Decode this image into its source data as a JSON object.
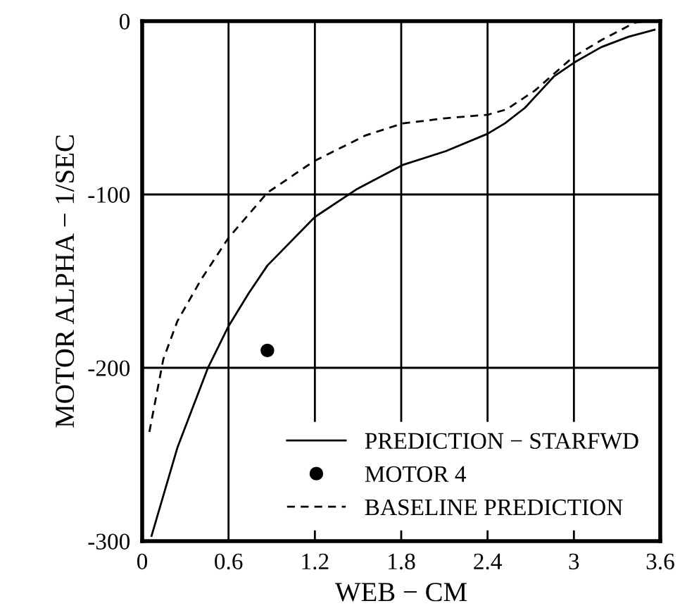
{
  "chart_data": {
    "type": "line",
    "xlabel": "WEB − CM",
    "ylabel": "MOTOR ALPHA − 1/SEC",
    "xlim": [
      0,
      3.6
    ],
    "ylim": [
      -300,
      0
    ],
    "xticks": [
      0,
      0.6,
      1.2,
      1.8,
      2.4,
      3,
      3.6
    ],
    "yticks": [
      -300,
      -200,
      -100,
      0
    ],
    "grid": true,
    "legend": "bottom right",
    "series": [
      {
        "name": "PREDICTION − STARFWD",
        "color": "#000000",
        "line_style": "solid",
        "x": [
          0.065,
          0.245,
          0.457,
          0.6,
          0.74,
          0.87,
          1.2,
          1.49,
          1.81,
          2.11,
          2.4,
          2.52,
          2.66,
          2.86,
          3.0,
          3.19,
          3.38,
          3.56
        ],
        "values": [
          -297,
          -246,
          -200,
          -176,
          -157,
          -141,
          -113,
          -97,
          -83,
          -75,
          -65,
          -59,
          -50,
          -32,
          -24,
          -15,
          -9,
          -5
        ]
      },
      {
        "name": "MOTOR 4",
        "type": "scatter",
        "color": "#000000",
        "marker": "circle",
        "x": [
          0.87
        ],
        "values": [
          -190
        ]
      },
      {
        "name": "BASELINE PREDICTION",
        "color": "#000000",
        "line_style": "dashed",
        "x": [
          0.05,
          0.147,
          0.245,
          0.41,
          0.6,
          0.87,
          1.19,
          1.55,
          1.81,
          2.11,
          2.4,
          2.53,
          2.73,
          2.99,
          3.19,
          3.42,
          3.5
        ],
        "values": [
          -237,
          -195,
          -173,
          -149,
          -125,
          -99,
          -81,
          -66,
          -59,
          -56,
          -54,
          -51,
          -40,
          -21,
          -11,
          -1,
          0
        ]
      }
    ]
  }
}
